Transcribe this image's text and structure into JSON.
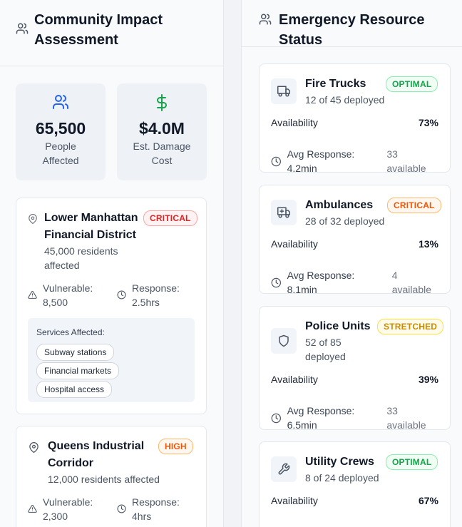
{
  "community": {
    "title": "Community Impact Assessment",
    "stats": [
      {
        "value": "65,500",
        "label": "People Affected",
        "icon": "users-icon",
        "color": "#2563eb"
      },
      {
        "value": "$4.0M",
        "label": "Est. Damage Cost",
        "icon": "dollar-icon",
        "color": "#16a34a"
      }
    ],
    "areas": [
      {
        "name": "Lower Manhattan Financial District",
        "severity": "CRITICAL",
        "residents": "45,000 residents affected",
        "vulnerable_label": "Vulnerable:",
        "vulnerable": "8,500",
        "response_label": "Response:",
        "response": "2.5hrs",
        "services_title": "Services Affected:",
        "services": [
          "Subway stations",
          "Financial markets",
          "Hospital access"
        ]
      },
      {
        "name": "Queens Industrial Corridor",
        "severity": "HIGH",
        "residents": "12,000 residents affected",
        "vulnerable_label": "Vulnerable:",
        "vulnerable": "2,300",
        "response_label": "Response:",
        "response": "4hrs"
      }
    ]
  },
  "resources": {
    "title": "Emergency Resource Status",
    "availability_label": "Availability",
    "items": [
      {
        "name": "Fire Trucks",
        "deployed": "12 of 45 deployed",
        "status": "OPTIMAL",
        "availability": "73%",
        "avg_response": "Avg Response: 4.2min",
        "available": "33 available",
        "icon": "truck-icon"
      },
      {
        "name": "Ambulances",
        "deployed": "28 of 32 deployed",
        "status": "CRITICAL",
        "availability": "13%",
        "avg_response": "Avg Response: 8.1min",
        "available": "4 available",
        "icon": "ambulance-icon"
      },
      {
        "name": "Police Units",
        "deployed_a": "52 of 85",
        "deployed_b": "deployed",
        "status": "STRETCHED",
        "availability": "39%",
        "avg_response": "Avg Response: 6.5min",
        "available": "33 available",
        "icon": "shield-icon"
      },
      {
        "name": "Utility Crews",
        "deployed": "8 of 24 deployed",
        "status": "OPTIMAL",
        "availability": "67%",
        "icon": "wrench-icon"
      }
    ]
  }
}
